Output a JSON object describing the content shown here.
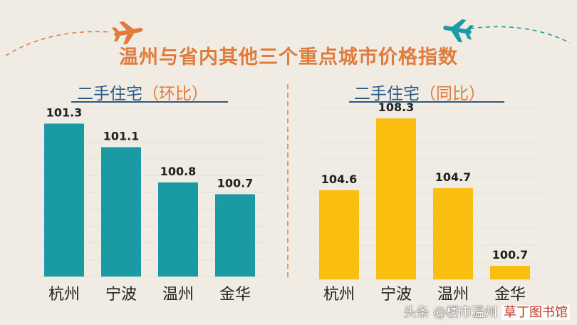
{
  "title": "温州与省内其他三个重点城市价格指数",
  "watermark": {
    "text": "头条 @楼市温州",
    "site": "草丁图书馆"
  },
  "colors": {
    "panel1": "#1a9aa3",
    "panel2": "#f9be0f",
    "title": "#e07b3c",
    "subtitle": "#2b5a84",
    "divider": "#e07b3c",
    "grid": "#e6e1d8"
  },
  "icons": [
    "airplane-icon-orange",
    "airplane-icon-teal"
  ],
  "chart_data": [
    {
      "type": "bar",
      "title": "二手住宅（环比）",
      "title_main": "二手住宅",
      "title_paren": "（环比）",
      "categories": [
        "杭州",
        "宁波",
        "温州",
        "金华"
      ],
      "values": [
        101.3,
        101.1,
        100.8,
        100.7
      ],
      "value_labels": [
        "101.3",
        "101.1",
        "100.8",
        "100.7"
      ],
      "color": "#1a9aa3",
      "grid": true
    },
    {
      "type": "bar",
      "title": "二手住宅（同比）",
      "title_main": "二手住宅",
      "title_paren": "（同比）",
      "categories": [
        "杭州",
        "宁波",
        "温州",
        "金华"
      ],
      "values": [
        104.6,
        108.3,
        104.7,
        100.7
      ],
      "value_labels": [
        "104.6",
        "108.3",
        "104.7",
        "100.7"
      ],
      "color": "#f9be0f",
      "grid": true
    }
  ]
}
